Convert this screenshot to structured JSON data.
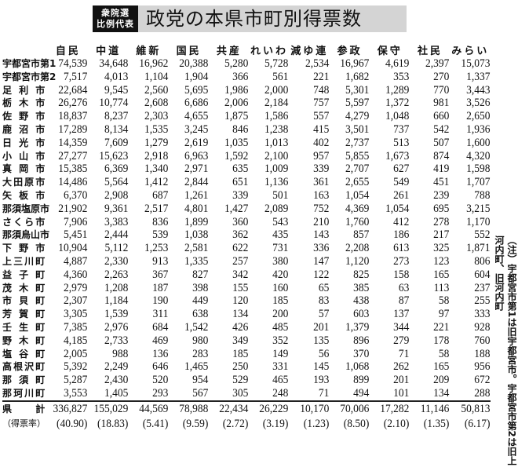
{
  "header": {
    "badge": "衆院選 比例代表",
    "title": "政党の本県市町別得票数"
  },
  "columns": [
    "自民",
    "中道",
    "維新",
    "国民",
    "共産",
    "れいわ",
    "減ゆ連",
    "参政",
    "保守",
    "社民",
    "みらい"
  ],
  "rows": [
    {
      "label": "宇都宮市第1",
      "values": [
        "74,539",
        "34,648",
        "16,962",
        "20,388",
        "5,280",
        "5,728",
        "2,534",
        "16,967",
        "4,619",
        "2,397",
        "15,073"
      ]
    },
    {
      "label": "宇都宮市第2",
      "values": [
        "7,517",
        "4,013",
        "1,104",
        "1,904",
        "366",
        "561",
        "221",
        "1,682",
        "353",
        "270",
        "1,337"
      ]
    },
    {
      "label": "足利市",
      "values": [
        "22,684",
        "9,545",
        "2,560",
        "5,695",
        "1,986",
        "2,000",
        "748",
        "5,301",
        "1,289",
        "770",
        "3,443"
      ]
    },
    {
      "label": "栃木市",
      "values": [
        "26,276",
        "10,774",
        "2,608",
        "6,686",
        "2,006",
        "2,184",
        "757",
        "5,597",
        "1,372",
        "981",
        "3,526"
      ]
    },
    {
      "label": "佐野市",
      "values": [
        "18,837",
        "8,237",
        "2,303",
        "4,655",
        "1,875",
        "1,586",
        "557",
        "4,279",
        "1,048",
        "660",
        "2,650"
      ]
    },
    {
      "label": "鹿沼市",
      "values": [
        "17,289",
        "8,134",
        "1,535",
        "3,245",
        "846",
        "1,238",
        "415",
        "3,501",
        "737",
        "542",
        "1,936"
      ]
    },
    {
      "label": "日光市",
      "values": [
        "14,359",
        "7,609",
        "1,279",
        "2,619",
        "1,035",
        "1,013",
        "402",
        "2,737",
        "513",
        "507",
        "1,600"
      ]
    },
    {
      "label": "小山市",
      "values": [
        "27,277",
        "15,623",
        "2,918",
        "6,963",
        "1,592",
        "2,100",
        "957",
        "5,855",
        "1,673",
        "874",
        "4,320"
      ]
    },
    {
      "label": "真岡市",
      "values": [
        "15,385",
        "6,369",
        "1,340",
        "2,971",
        "635",
        "1,009",
        "339",
        "2,707",
        "627",
        "419",
        "1,598"
      ]
    },
    {
      "label": "大田原市",
      "values": [
        "14,486",
        "5,564",
        "1,412",
        "2,844",
        "651",
        "1,136",
        "361",
        "2,655",
        "549",
        "451",
        "1,707"
      ]
    },
    {
      "label": "矢板市",
      "values": [
        "6,370",
        "2,908",
        "687",
        "1,261",
        "339",
        "501",
        "163",
        "1,054",
        "261",
        "239",
        "788"
      ]
    },
    {
      "label": "那須塩原市",
      "values": [
        "21,902",
        "9,361",
        "2,517",
        "4,801",
        "1,427",
        "2,089",
        "752",
        "4,369",
        "1,054",
        "695",
        "3,215"
      ]
    },
    {
      "label": "さくら市",
      "values": [
        "7,906",
        "3,383",
        "836",
        "1,899",
        "360",
        "543",
        "210",
        "1,760",
        "412",
        "278",
        "1,170"
      ]
    },
    {
      "label": "那須烏山市",
      "values": [
        "5,451",
        "2,444",
        "539",
        "1,038",
        "362",
        "435",
        "143",
        "857",
        "186",
        "217",
        "552"
      ]
    },
    {
      "label": "下野市",
      "values": [
        "10,904",
        "5,112",
        "1,253",
        "2,581",
        "622",
        "731",
        "336",
        "2,208",
        "613",
        "325",
        "1,871"
      ]
    },
    {
      "label": "上三川町",
      "values": [
        "4,887",
        "2,330",
        "913",
        "1,335",
        "257",
        "380",
        "147",
        "1,120",
        "273",
        "123",
        "806"
      ]
    },
    {
      "label": "益子町",
      "values": [
        "4,360",
        "2,263",
        "367",
        "827",
        "342",
        "420",
        "122",
        "825",
        "158",
        "165",
        "604"
      ]
    },
    {
      "label": "茂木町",
      "values": [
        "2,979",
        "1,208",
        "187",
        "398",
        "155",
        "160",
        "65",
        "385",
        "63",
        "113",
        "237"
      ]
    },
    {
      "label": "市貝町",
      "values": [
        "2,307",
        "1,184",
        "190",
        "449",
        "120",
        "185",
        "83",
        "438",
        "87",
        "58",
        "255"
      ]
    },
    {
      "label": "芳賀町",
      "values": [
        "3,305",
        "1,539",
        "311",
        "638",
        "134",
        "200",
        "57",
        "603",
        "137",
        "97",
        "333"
      ]
    },
    {
      "label": "壬生町",
      "values": [
        "7,385",
        "2,976",
        "684",
        "1,542",
        "426",
        "485",
        "201",
        "1,379",
        "344",
        "221",
        "928"
      ]
    },
    {
      "label": "野木町",
      "values": [
        "4,185",
        "2,733",
        "469",
        "980",
        "349",
        "352",
        "135",
        "896",
        "279",
        "178",
        "760"
      ]
    },
    {
      "label": "塩谷町",
      "values": [
        "2,005",
        "988",
        "136",
        "283",
        "185",
        "149",
        "56",
        "370",
        "71",
        "58",
        "188"
      ]
    },
    {
      "label": "高根沢町",
      "values": [
        "5,392",
        "2,249",
        "646",
        "1,465",
        "250",
        "331",
        "145",
        "1,068",
        "262",
        "165",
        "956"
      ]
    },
    {
      "label": "那須町",
      "values": [
        "5,287",
        "2,430",
        "520",
        "954",
        "529",
        "465",
        "193",
        "899",
        "201",
        "209",
        "672"
      ]
    },
    {
      "label": "那珂川町",
      "values": [
        "3,553",
        "1,405",
        "293",
        "567",
        "305",
        "248",
        "71",
        "494",
        "101",
        "134",
        "288"
      ]
    }
  ],
  "total": {
    "label": "県　　計",
    "values": [
      "336,827",
      "155,029",
      "44,569",
      "78,988",
      "22,434",
      "26,229",
      "10,170",
      "70,006",
      "17,282",
      "11,146",
      "50,813"
    ]
  },
  "rate": {
    "label": "（得票率）",
    "values": [
      "(40.90)",
      "(18.83)",
      "(5.41)",
      "(9.59)",
      "(2.72)",
      "(3.19)",
      "(1.23)",
      "(8.50)",
      "(2.10)",
      "(1.35)",
      "(6.17)"
    ]
  },
  "note": "（注）宇都宮市第1は旧宇都宮市。宇都宮市第2は旧上河内町、旧河内町"
}
